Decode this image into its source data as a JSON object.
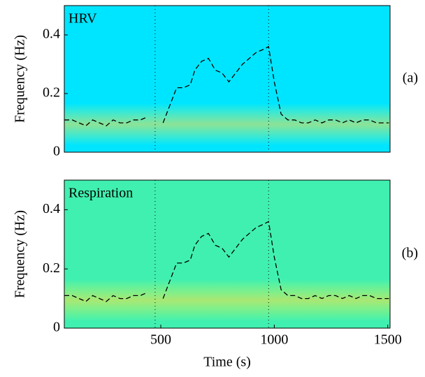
{
  "chart_data": [
    {
      "type": "line",
      "annotation": "HRV",
      "panel_label": "(a)",
      "ylabel": "Frequency (Hz)",
      "background": "#00e5ff",
      "line_color": "#000000",
      "xlim": [
        75,
        1510
      ],
      "ylim": [
        0,
        0.5
      ],
      "yticks": [
        0,
        0.2,
        0.4
      ],
      "vlines": [
        475,
        975
      ],
      "x": [
        75,
        110,
        140,
        170,
        200,
        230,
        260,
        290,
        320,
        350,
        380,
        410,
        440,
        480,
        510,
        540,
        570,
        600,
        630,
        650,
        680,
        710,
        740,
        770,
        800,
        830,
        860,
        890,
        920,
        950,
        975,
        1000,
        1030,
        1060,
        1090,
        1120,
        1150,
        1180,
        1210,
        1240,
        1270,
        1300,
        1330,
        1360,
        1390,
        1420,
        1450,
        1480,
        1505
      ],
      "values": [
        0.11,
        0.11,
        0.1,
        0.09,
        0.11,
        0.1,
        0.09,
        0.11,
        0.1,
        0.1,
        0.11,
        0.11,
        0.12,
        null,
        0.1,
        0.16,
        0.22,
        0.22,
        0.23,
        0.28,
        0.31,
        0.32,
        0.28,
        0.27,
        0.24,
        0.27,
        0.3,
        0.32,
        0.34,
        0.35,
        0.36,
        0.24,
        0.13,
        0.11,
        0.11,
        0.1,
        0.1,
        0.11,
        0.1,
        0.11,
        0.11,
        0.1,
        0.11,
        0.1,
        0.11,
        0.11,
        0.1,
        0.1,
        0.1
      ]
    },
    {
      "type": "line",
      "annotation": "Respiration",
      "panel_label": "(b)",
      "ylabel": "Frequency (Hz)",
      "xlabel": "Time (s)",
      "background": "#40f0b0",
      "line_color": "#000000",
      "xlim": [
        75,
        1510
      ],
      "ylim": [
        0,
        0.5
      ],
      "yticks": [
        0,
        0.2,
        0.4
      ],
      "xticks": [
        500,
        1000,
        1500
      ],
      "vlines": [
        475,
        975
      ],
      "x": [
        75,
        110,
        140,
        170,
        200,
        230,
        260,
        290,
        320,
        350,
        380,
        410,
        440,
        480,
        510,
        540,
        570,
        600,
        630,
        650,
        680,
        710,
        740,
        770,
        800,
        830,
        860,
        890,
        920,
        950,
        975,
        1000,
        1030,
        1060,
        1090,
        1120,
        1150,
        1180,
        1210,
        1240,
        1270,
        1300,
        1330,
        1360,
        1390,
        1420,
        1450,
        1480,
        1505
      ],
      "values": [
        0.11,
        0.11,
        0.1,
        0.09,
        0.11,
        0.1,
        0.09,
        0.11,
        0.1,
        0.1,
        0.11,
        0.11,
        0.12,
        null,
        0.1,
        0.16,
        0.22,
        0.22,
        0.23,
        0.28,
        0.31,
        0.32,
        0.28,
        0.27,
        0.24,
        0.27,
        0.3,
        0.32,
        0.34,
        0.35,
        0.36,
        0.24,
        0.13,
        0.11,
        0.11,
        0.1,
        0.1,
        0.11,
        0.1,
        0.11,
        0.11,
        0.1,
        0.11,
        0.1,
        0.11,
        0.11,
        0.1,
        0.1,
        0.1
      ]
    }
  ]
}
